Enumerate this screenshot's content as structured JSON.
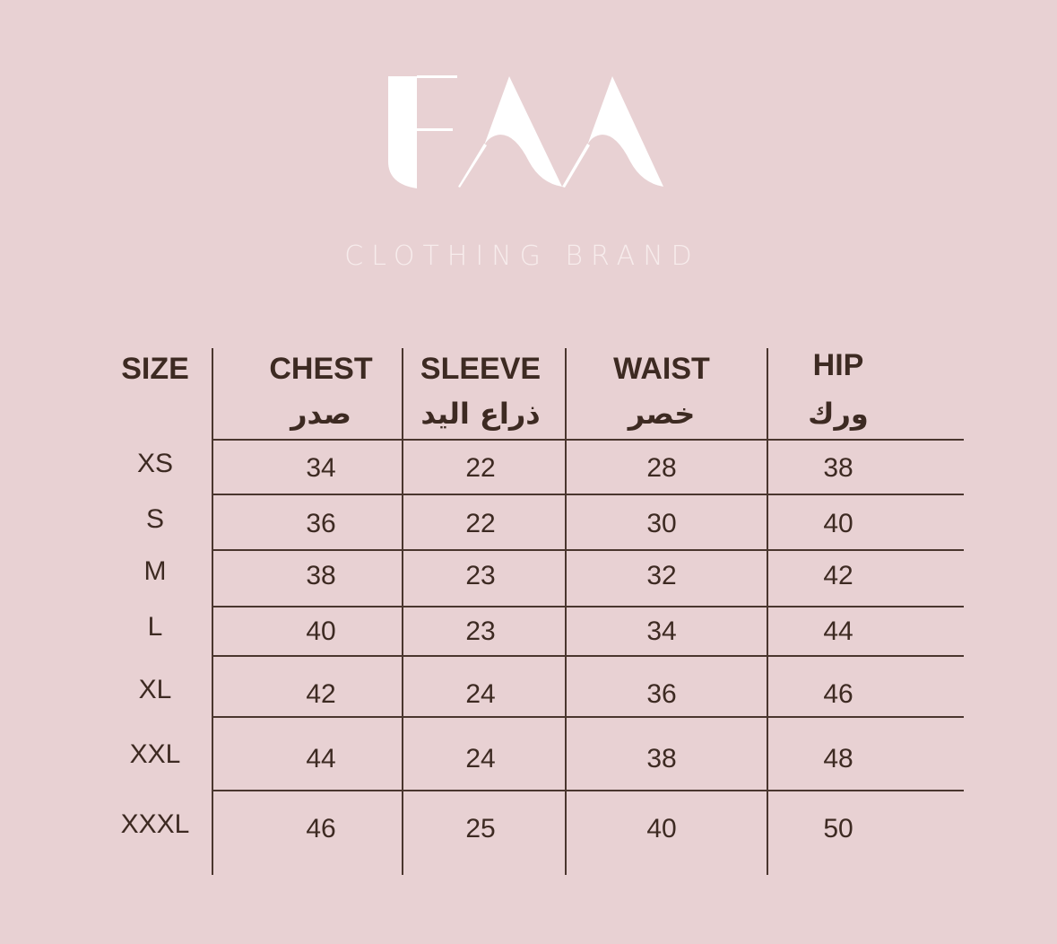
{
  "brand": {
    "logo_text": "FAA",
    "tagline": "CLOTHING BRAND"
  },
  "colors": {
    "background": "#e8d1d3",
    "text": "#3d2a22",
    "logo": "#ffffff"
  },
  "table": {
    "headers": [
      {
        "en": "SIZE",
        "ar": ""
      },
      {
        "en": "CHEST",
        "ar": "صدر"
      },
      {
        "en": "SLEEVE",
        "ar": "ذراع اليد"
      },
      {
        "en": "WAIST",
        "ar": "خصر"
      },
      {
        "en": "HIP",
        "ar": "ورك"
      }
    ],
    "rows": [
      [
        "XS",
        "34",
        "22",
        "28",
        "38"
      ],
      [
        "S",
        "36",
        "22",
        "30",
        "40"
      ],
      [
        "M",
        "38",
        "23",
        "32",
        "42"
      ],
      [
        "L",
        "40",
        "23",
        "34",
        "44"
      ],
      [
        "XL",
        "42",
        "24",
        "36",
        "46"
      ],
      [
        "XXL",
        "44",
        "24",
        "38",
        "48"
      ],
      [
        "XXXL",
        "46",
        "25",
        "40",
        "50"
      ]
    ]
  }
}
